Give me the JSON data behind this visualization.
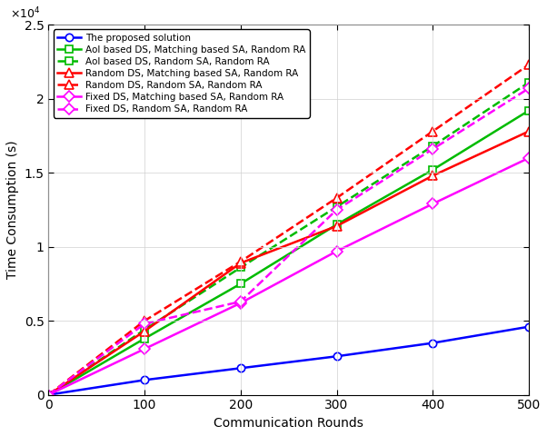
{
  "x": [
    0,
    100,
    200,
    300,
    400,
    500
  ],
  "series": [
    {
      "label": "The proposed solution",
      "color": "#0000FF",
      "linestyle": "-",
      "marker": "o",
      "markerfacecolor": "white",
      "markersize": 6,
      "linewidth": 1.8,
      "values": [
        0,
        1000,
        1800,
        2600,
        3500,
        4600
      ]
    },
    {
      "label": "AoI based DS, Matching based SA, Random RA",
      "color": "#00BB00",
      "linestyle": "-",
      "marker": "s",
      "markerfacecolor": "white",
      "markersize": 6,
      "linewidth": 1.8,
      "values": [
        0,
        3800,
        7500,
        11500,
        15200,
        19200
      ]
    },
    {
      "label": "AoI based DS, Random SA, Random RA",
      "color": "#00BB00",
      "linestyle": "--",
      "marker": "s",
      "markerfacecolor": "white",
      "markersize": 6,
      "linewidth": 1.8,
      "values": [
        0,
        4400,
        8600,
        12700,
        16800,
        21100
      ]
    },
    {
      "label": "Random DS, Matching based SA, Random RA",
      "color": "#FF0000",
      "linestyle": "-",
      "marker": "^",
      "markerfacecolor": "white",
      "markersize": 7,
      "linewidth": 1.8,
      "values": [
        0,
        4300,
        8900,
        11400,
        14800,
        17800
      ]
    },
    {
      "label": "Random DS, Random SA, Random RA",
      "color": "#FF0000",
      "linestyle": "--",
      "marker": "^",
      "markerfacecolor": "white",
      "markersize": 7,
      "linewidth": 1.8,
      "values": [
        0,
        5000,
        9000,
        13300,
        17800,
        22300
      ]
    },
    {
      "label": "Fixed DS, Matching based SA, Random RA",
      "color": "#FF00FF",
      "linestyle": "-",
      "marker": "D",
      "markerfacecolor": "white",
      "markersize": 6,
      "linewidth": 1.8,
      "values": [
        0,
        3100,
        6200,
        9700,
        12900,
        16000
      ]
    },
    {
      "label": "Fixed DS, Random SA, Random RA",
      "color": "#FF00FF",
      "linestyle": "--",
      "marker": "D",
      "markerfacecolor": "white",
      "markersize": 6,
      "linewidth": 1.8,
      "values": [
        0,
        4800,
        6300,
        12500,
        16600,
        20700
      ]
    }
  ],
  "xlabel": "Communication Rounds",
  "ylabel": "Time Consumption (s)",
  "ylim": [
    0,
    25000
  ],
  "xlim": [
    0,
    500
  ],
  "yticks": [
    0,
    5000,
    10000,
    15000,
    20000,
    25000
  ],
  "ytick_labels": [
    "0",
    "0.5",
    "1",
    "1.5",
    "2",
    "2.5"
  ],
  "xticks": [
    0,
    100,
    200,
    300,
    400,
    500
  ],
  "legend_loc": "upper left",
  "exponent_text": "$\\times10^4$",
  "background_color": "#ffffff",
  "grid_color": "#d0d0d0"
}
